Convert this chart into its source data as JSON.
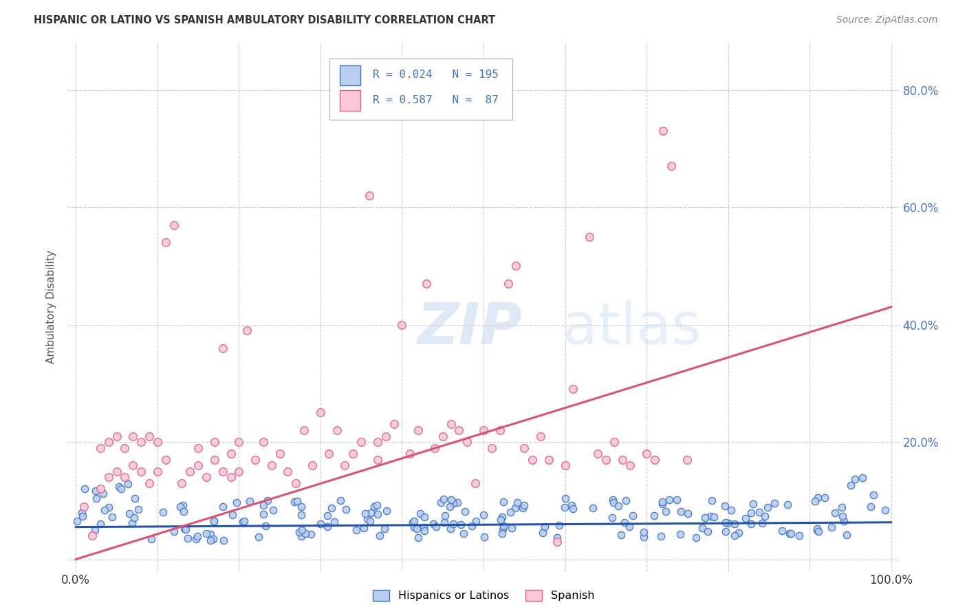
{
  "title": "HISPANIC OR LATINO VS SPANISH AMBULATORY DISABILITY CORRELATION CHART",
  "source": "Source: ZipAtlas.com",
  "ylabel": "Ambulatory Disability",
  "watermark_zip": "ZIP",
  "watermark_atlas": "atlas",
  "legend_entries": [
    {
      "label": "Hispanics or Latinos",
      "R": "0.024",
      "N": "195",
      "face_color": "#b8d0f0",
      "edge_color": "#4472c4",
      "line_color": "#2255aa"
    },
    {
      "label": "Spanish",
      "R": "0.587",
      "N": "87",
      "face_color": "#f8c8d8",
      "edge_color": "#e06080",
      "line_color": "#e05070"
    }
  ],
  "xlim": [
    -0.01,
    1.01
  ],
  "ylim": [
    -0.02,
    0.88
  ],
  "x_ticks": [
    0.0,
    0.1,
    0.2,
    0.3,
    0.4,
    0.5,
    0.6,
    0.7,
    0.8,
    0.9,
    1.0
  ],
  "x_tick_labels": [
    "0.0%",
    "",
    "",
    "",
    "",
    "",
    "",
    "",
    "",
    "",
    "100.0%"
  ],
  "y_ticks_right": [
    0.2,
    0.4,
    0.6,
    0.8
  ],
  "y_tick_labels_right": [
    "20.0%",
    "40.0%",
    "60.0%",
    "80.0%"
  ],
  "background_color": "#ffffff",
  "grid_color": "#cccccc",
  "blue_line_intercept": 0.055,
  "blue_line_slope": 0.008,
  "pink_line_intercept": 0.0,
  "pink_line_slope": 0.43,
  "pink_scatter_x": [
    0.01,
    0.02,
    0.03,
    0.03,
    0.04,
    0.04,
    0.05,
    0.05,
    0.06,
    0.06,
    0.07,
    0.07,
    0.08,
    0.08,
    0.09,
    0.09,
    0.1,
    0.1,
    0.11,
    0.11,
    0.12,
    0.13,
    0.14,
    0.15,
    0.15,
    0.16,
    0.17,
    0.17,
    0.18,
    0.18,
    0.19,
    0.19,
    0.2,
    0.2,
    0.21,
    0.22,
    0.23,
    0.24,
    0.25,
    0.26,
    0.27,
    0.28,
    0.29,
    0.3,
    0.31,
    0.32,
    0.33,
    0.34,
    0.35,
    0.36,
    0.37,
    0.37,
    0.38,
    0.39,
    0.4,
    0.41,
    0.42,
    0.43,
    0.44,
    0.45,
    0.46,
    0.47,
    0.48,
    0.49,
    0.5,
    0.51,
    0.52,
    0.53,
    0.54,
    0.55,
    0.56,
    0.57,
    0.58,
    0.59,
    0.6,
    0.61,
    0.63,
    0.64,
    0.65,
    0.66,
    0.67,
    0.68,
    0.7,
    0.71,
    0.72,
    0.73,
    0.75
  ],
  "pink_scatter_y": [
    0.09,
    0.04,
    0.12,
    0.19,
    0.14,
    0.2,
    0.15,
    0.21,
    0.14,
    0.19,
    0.16,
    0.21,
    0.15,
    0.2,
    0.13,
    0.21,
    0.15,
    0.2,
    0.54,
    0.17,
    0.57,
    0.13,
    0.15,
    0.16,
    0.19,
    0.14,
    0.17,
    0.2,
    0.15,
    0.36,
    0.14,
    0.18,
    0.15,
    0.2,
    0.39,
    0.17,
    0.2,
    0.16,
    0.18,
    0.15,
    0.13,
    0.22,
    0.16,
    0.25,
    0.18,
    0.22,
    0.16,
    0.18,
    0.2,
    0.62,
    0.17,
    0.2,
    0.21,
    0.23,
    0.4,
    0.18,
    0.22,
    0.47,
    0.19,
    0.21,
    0.23,
    0.22,
    0.2,
    0.13,
    0.22,
    0.19,
    0.22,
    0.47,
    0.5,
    0.19,
    0.17,
    0.21,
    0.17,
    0.03,
    0.16,
    0.29,
    0.55,
    0.18,
    0.17,
    0.2,
    0.17,
    0.16,
    0.18,
    0.17,
    0.73,
    0.67,
    0.17
  ]
}
